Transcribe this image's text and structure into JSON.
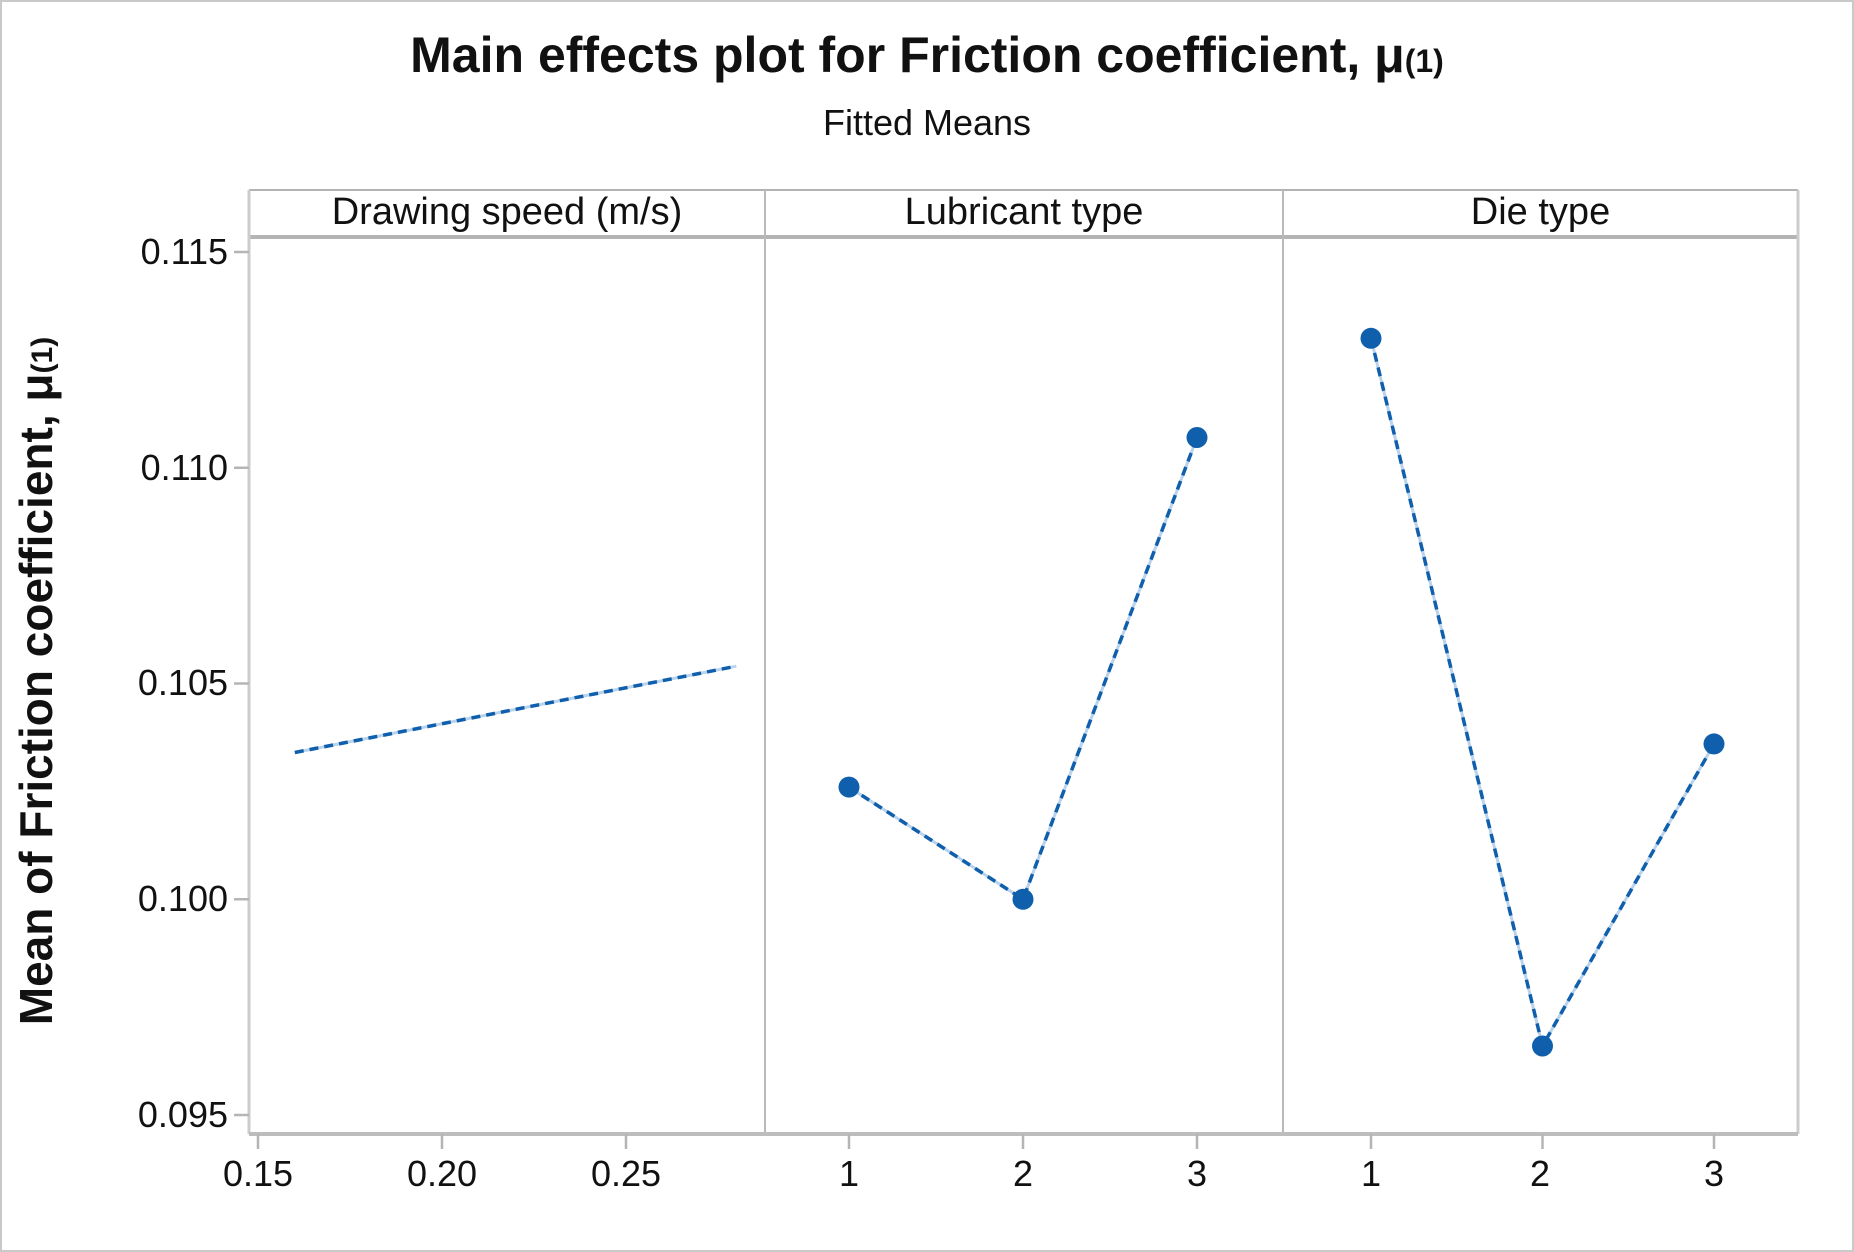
{
  "title": {
    "text": "Main effects plot for Friction coefficient, μ",
    "subscript": "(1)"
  },
  "subtitle": "Fitted Means",
  "y_axis": {
    "label": "Mean of Friction coefficient, μ",
    "label_subscript": "(1)",
    "tick_labels": [
      "0.115",
      "0.110",
      "0.105",
      "0.100",
      "0.095"
    ]
  },
  "panels": [
    {
      "header": "Drawing speed (m/s)",
      "tick_labels": [
        "0.15",
        "0.20",
        "0.25"
      ]
    },
    {
      "header": "Lubricant type",
      "tick_labels": [
        "1",
        "2",
        "3"
      ]
    },
    {
      "header": "Die type",
      "tick_labels": [
        "1",
        "2",
        "3"
      ]
    }
  ],
  "chart_data": {
    "type": "line",
    "title": "Main effects plot for Friction coefficient, μ(1)",
    "subtitle": "Fitted Means",
    "ylabel": "Mean of Friction coefficient, μ(1)",
    "ylim": [
      0.0945,
      0.1155
    ],
    "yticks": [
      0.115,
      0.11,
      0.105,
      0.1,
      0.095
    ],
    "grid": false,
    "legend": "none",
    "line_color": "#0f5fad",
    "line_style": "dashed",
    "marker": "filled-circle",
    "panels": [
      {
        "header": "Drawing speed (m/s)",
        "x_type": "continuous",
        "xticks": [
          0.15,
          0.2,
          0.25
        ],
        "x": [
          0.16,
          0.28
        ],
        "y": [
          0.1034,
          0.1054
        ],
        "markers": false
      },
      {
        "header": "Lubricant type",
        "x_type": "categorical",
        "xticks": [
          1,
          2,
          3
        ],
        "x": [
          1,
          2,
          3
        ],
        "y": [
          0.1026,
          0.1,
          0.1107
        ],
        "markers": true
      },
      {
        "header": "Die type",
        "x_type": "categorical",
        "xticks": [
          1,
          2,
          3
        ],
        "x": [
          1,
          2,
          3
        ],
        "y": [
          0.113,
          0.0966,
          0.1036
        ],
        "markers": true
      }
    ]
  }
}
